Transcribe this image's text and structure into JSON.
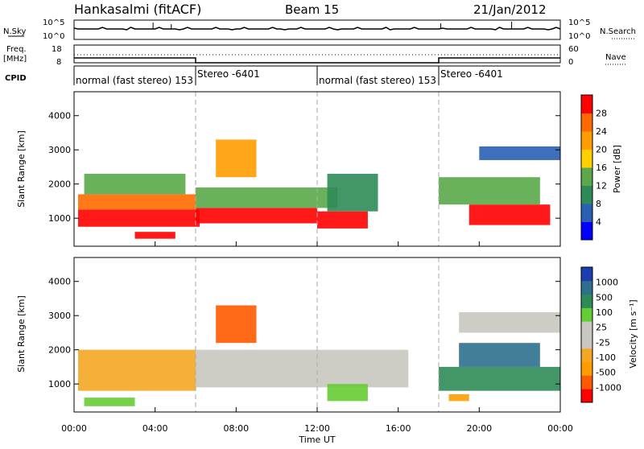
{
  "header": {
    "station": "Hankasalmi (fitACF)",
    "beam": "Beam 15",
    "date": "21/Jan/2012"
  },
  "top_panels": {
    "nsky_label": "N.Sky",
    "nsearch_label": "N.Search",
    "nsky_ticks": [
      "10^5",
      "10^0"
    ],
    "freq_label_1": "Freq.",
    "freq_label_2": "[MHz]",
    "freq_ticks": [
      "18",
      "8"
    ],
    "nave_label": "Nave",
    "nave_ticks": [
      "60",
      "0"
    ],
    "cpid_label": "CPID",
    "cpid_segments": [
      {
        "label": "normal (fast stereo) 153",
        "start": 0,
        "end": 6
      },
      {
        "label": "Stereo -6401",
        "start": 6,
        "end": 12
      },
      {
        "label": "normal (fast stereo) 153",
        "start": 12,
        "end": 18
      },
      {
        "label": "Stereo -6401",
        "start": 18,
        "end": 24
      }
    ]
  },
  "colors": {
    "power_scale": [
      "#0000ff",
      "#2a5fb4",
      "#2e8b57",
      "#5aa84a",
      "#ffd000",
      "#ff9d00",
      "#ff6a00",
      "#ff0000"
    ],
    "velocity_scale": [
      "#ff0000",
      "#ff5a00",
      "#ff9d00",
      "#f5a623",
      "#c8c8c0",
      "#c8c8c0",
      "#66cc33",
      "#2e8b57",
      "#2e6f8e",
      "#1c3fb0"
    ]
  },
  "chart_data": [
    {
      "type": "heatmap",
      "panel": "power",
      "ylabel": "Slant Range [km]",
      "xlabel": "Time UT",
      "x_ticks": [
        "00:00",
        "04:00",
        "08:00",
        "12:00",
        "16:00",
        "20:00",
        "00:00"
      ],
      "x_range_hours": [
        0,
        24
      ],
      "y_ticks": [
        1000,
        2000,
        3000,
        4000
      ],
      "ylim": [
        180,
        4700
      ],
      "colorbar_label": "Power [dB]",
      "colorbar_ticks": [
        "4",
        "8",
        "12",
        "16",
        "20",
        "24",
        "28"
      ],
      "regions": [
        {
          "t0": 0.2,
          "t1": 6.2,
          "r0": 750,
          "r1": 1250,
          "level": 7
        },
        {
          "t0": 0.2,
          "t1": 6.0,
          "r0": 1250,
          "r1": 1700,
          "level": 6
        },
        {
          "t0": 0.5,
          "t1": 5.5,
          "r0": 1700,
          "r1": 2300,
          "level": 3
        },
        {
          "t0": 6.0,
          "t1": 12.0,
          "r0": 850,
          "r1": 1300,
          "level": 7
        },
        {
          "t0": 6.0,
          "t1": 13.0,
          "r0": 1300,
          "r1": 1900,
          "level": 3
        },
        {
          "t0": 7.0,
          "t1": 9.0,
          "r0": 2200,
          "r1": 3300,
          "level": 5
        },
        {
          "t0": 12.0,
          "t1": 14.5,
          "r0": 700,
          "r1": 1200,
          "level": 7
        },
        {
          "t0": 12.5,
          "t1": 15.0,
          "r0": 1200,
          "r1": 2300,
          "level": 2
        },
        {
          "t0": 3.0,
          "t1": 5.0,
          "r0": 400,
          "r1": 600,
          "level": 7
        },
        {
          "t0": 19.5,
          "t1": 23.5,
          "r0": 800,
          "r1": 1400,
          "level": 7
        },
        {
          "t0": 18.0,
          "t1": 23.0,
          "r0": 1400,
          "r1": 2200,
          "level": 3
        },
        {
          "t0": 20.0,
          "t1": 24.0,
          "r0": 2700,
          "r1": 3100,
          "level": 1
        }
      ]
    },
    {
      "type": "heatmap",
      "panel": "velocity",
      "ylabel": "Slant Range [km]",
      "xlabel": "Time UT",
      "x_ticks": [
        "00:00",
        "04:00",
        "08:00",
        "12:00",
        "16:00",
        "20:00",
        "00:00"
      ],
      "x_range_hours": [
        0,
        24
      ],
      "y_ticks": [
        1000,
        2000,
        3000,
        4000
      ],
      "ylim": [
        180,
        4700
      ],
      "colorbar_label": "Velocity [m s⁻¹]",
      "colorbar_ticks": [
        "1000",
        "500",
        "100",
        "25",
        "-25",
        "-100",
        "-500",
        "-1000"
      ],
      "regions": [
        {
          "t0": 0.2,
          "t1": 6.0,
          "r0": 800,
          "r1": 2000,
          "level": 3
        },
        {
          "t0": 6.0,
          "t1": 16.5,
          "r0": 900,
          "r1": 2000,
          "level": 4
        },
        {
          "t0": 7.0,
          "t1": 9.0,
          "r0": 2200,
          "r1": 3300,
          "level": 1
        },
        {
          "t0": 12.5,
          "t1": 14.5,
          "r0": 500,
          "r1": 1000,
          "level": 6
        },
        {
          "t0": 18.0,
          "t1": 24.0,
          "r0": 800,
          "r1": 1500,
          "level": 7
        },
        {
          "t0": 19.0,
          "t1": 23.0,
          "r0": 1500,
          "r1": 2200,
          "level": 8
        },
        {
          "t0": 19.0,
          "t1": 24.0,
          "r0": 2500,
          "r1": 3100,
          "level": 4
        },
        {
          "t0": 0.5,
          "t1": 3.0,
          "r0": 350,
          "r1": 600,
          "level": 6
        },
        {
          "t0": 18.5,
          "t1": 19.5,
          "r0": 500,
          "r1": 700,
          "level": 2
        }
      ]
    }
  ]
}
